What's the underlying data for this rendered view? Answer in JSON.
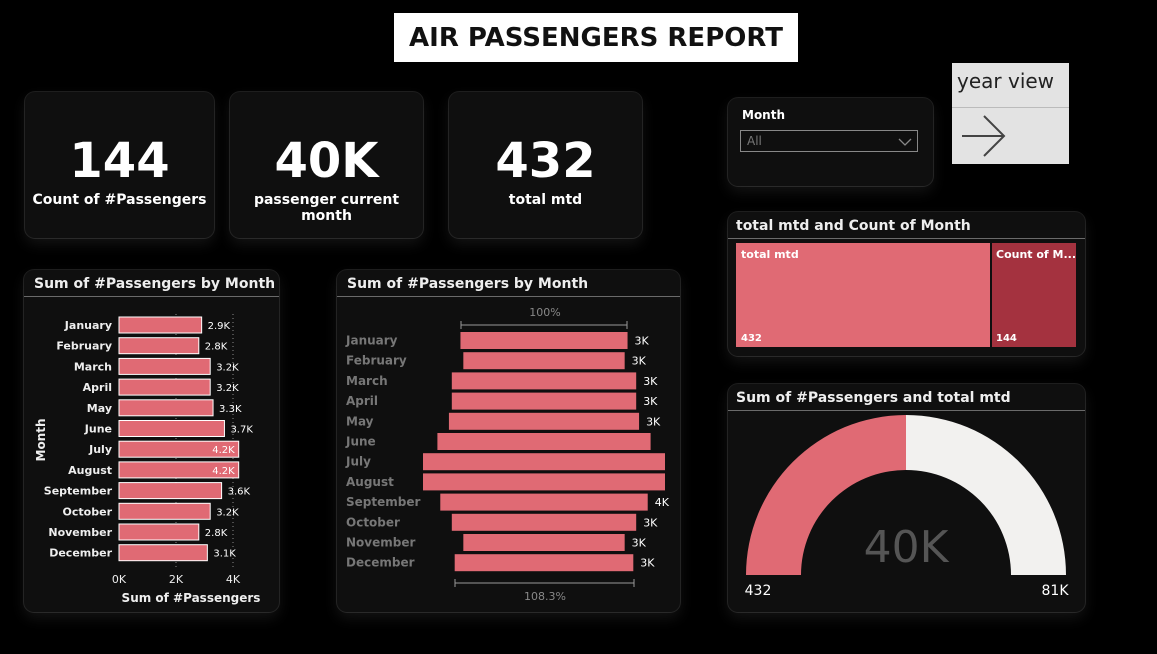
{
  "report_title": "AIR PASSENGERS REPORT",
  "kpis": [
    {
      "value": "144",
      "label": "Count of #Passengers"
    },
    {
      "value": "40K",
      "label": "passenger current month"
    },
    {
      "value": "432",
      "label": "total mtd"
    }
  ],
  "slicer": {
    "label": "Month",
    "value": "All"
  },
  "nav_button": {
    "label": "year view"
  },
  "colors": {
    "bar": "#e06a74",
    "bar_dark": "#a4323f",
    "gauge_rest": "#f2f1ef"
  },
  "bar_chart": {
    "title": "Sum of #Passengers by Month",
    "ylabel": "Month",
    "xlabel": "Sum of #Passengers",
    "ticks": [
      "0K",
      "2K",
      "4K"
    ]
  },
  "funnel_chart": {
    "title": "Sum of #Passengers by Month",
    "top_label": "100%",
    "bottom_label": "108.3%"
  },
  "treemap": {
    "title": "total mtd and Count of Month",
    "tiles": [
      {
        "label": "total mtd",
        "value": "432"
      },
      {
        "label": "Count of M...",
        "value": "144"
      }
    ]
  },
  "gauge": {
    "title": "Sum of #Passengers and total mtd",
    "value_label": "40K",
    "min_label": "432",
    "max_label": "81K",
    "fraction": 0.5
  },
  "chart_data": [
    {
      "type": "bar",
      "title": "Sum of #Passengers by Month",
      "categories": [
        "January",
        "February",
        "March",
        "April",
        "May",
        "June",
        "July",
        "August",
        "September",
        "October",
        "November",
        "December"
      ],
      "values": [
        2.9,
        2.8,
        3.2,
        3.2,
        3.3,
        3.7,
        4.2,
        4.2,
        3.6,
        3.2,
        2.8,
        3.1
      ],
      "data_labels": [
        "2.9K",
        "2.8K",
        "3.2K",
        "3.2K",
        "3.3K",
        "3.7K",
        "4.2K",
        "4.2K",
        "3.6K",
        "3.2K",
        "2.8K",
        "3.1K"
      ],
      "unit": "K",
      "xlabel": "Sum of #Passengers",
      "ylabel": "Month",
      "xlim": [
        0,
        4
      ]
    },
    {
      "type": "funnel",
      "title": "Sum of #Passengers by Month",
      "categories": [
        "January",
        "February",
        "March",
        "April",
        "May",
        "June",
        "July",
        "August",
        "September",
        "October",
        "November",
        "December"
      ],
      "values": [
        2.9,
        2.8,
        3.2,
        3.2,
        3.3,
        3.7,
        4.2,
        4.2,
        3.6,
        3.2,
        2.8,
        3.1
      ],
      "data_labels": [
        "3K",
        "3K",
        "3K",
        "3K",
        "3K",
        "",
        "",
        "",
        "4K",
        "3K",
        "3K",
        "3K"
      ]
    }
  ]
}
